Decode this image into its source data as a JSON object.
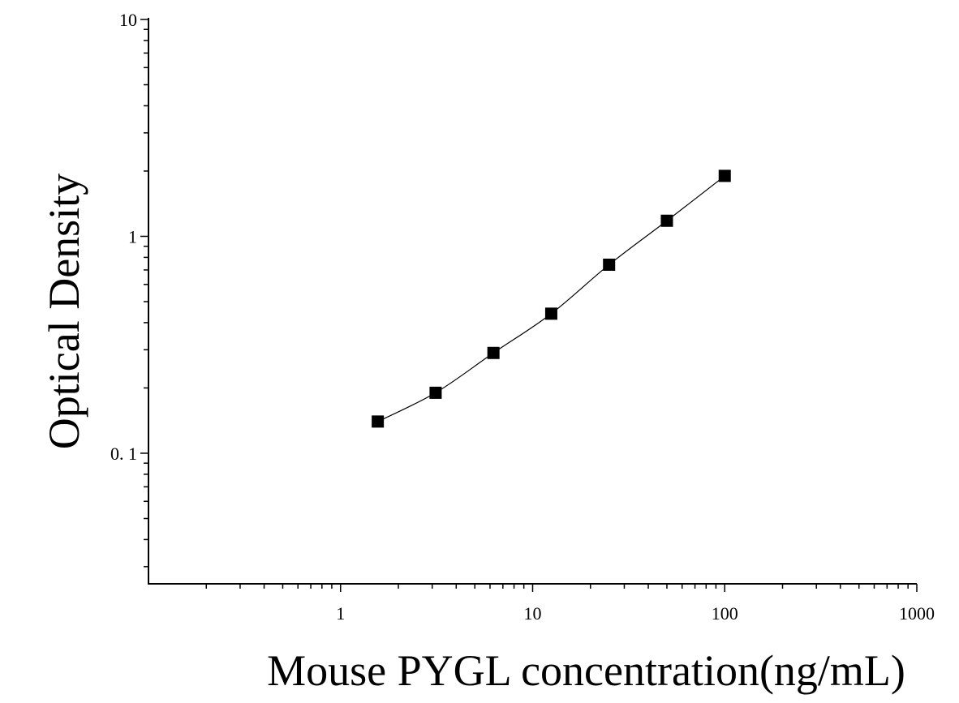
{
  "chart_data": {
    "type": "scatter",
    "xlabel": "Mouse PYGL concentration(ng/mL)",
    "ylabel": "Optical Density",
    "x_scale": "log",
    "y_scale": "log",
    "xlim": [
      0.1,
      1000
    ],
    "ylim": [
      0.025,
      10
    ],
    "x_ticks": [
      {
        "value": 1,
        "label": "1"
      },
      {
        "value": 10,
        "label": "10"
      },
      {
        "value": 100,
        "label": "100"
      },
      {
        "value": 1000,
        "label": "1000"
      }
    ],
    "y_ticks": [
      {
        "value": 0.1,
        "label": "0. 1"
      },
      {
        "value": 1,
        "label": "1"
      },
      {
        "value": 10,
        "label": "10"
      }
    ],
    "grid": false,
    "series": [
      {
        "marker": "square",
        "color": "#000000",
        "fit_line": true,
        "points": [
          {
            "x": 1.5625,
            "y": 0.14
          },
          {
            "x": 3.125,
            "y": 0.19
          },
          {
            "x": 6.25,
            "y": 0.29
          },
          {
            "x": 12.5,
            "y": 0.44
          },
          {
            "x": 25,
            "y": 0.74
          },
          {
            "x": 50,
            "y": 1.18
          },
          {
            "x": 100,
            "y": 1.9
          }
        ]
      }
    ]
  }
}
